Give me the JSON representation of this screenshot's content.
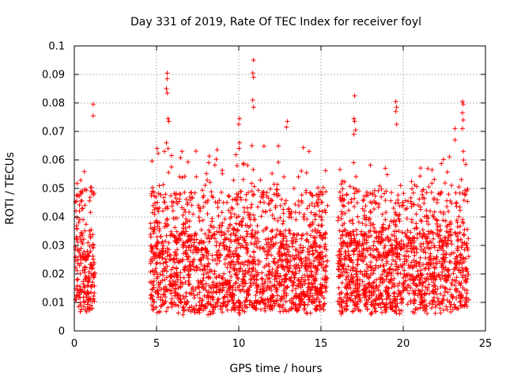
{
  "chart_data": {
    "type": "scatter",
    "title": "Day 331 of 2019, Rate Of TEC Index for receiver foyl",
    "xlabel": "GPS time / hours",
    "ylabel": "ROTI / TECUs",
    "xlim": [
      0,
      25
    ],
    "ylim": [
      0,
      0.1
    ],
    "x_ticks": [
      "0",
      "5",
      "10",
      "15",
      "20",
      "25"
    ],
    "y_ticks": [
      "0",
      "0.01",
      "0.02",
      "0.03",
      "0.04",
      "0.05",
      "0.06",
      "0.07",
      "0.08",
      "0.09",
      "0.1"
    ],
    "grid": true,
    "marker": "+",
    "series_color": "#ff0000",
    "data_segments": [
      {
        "x_start": 0.05,
        "x_end": 1.25,
        "typical_min": 0.007,
        "typical_max": 0.035,
        "peak": 0.055
      },
      {
        "x_start": 4.6,
        "x_end": 15.4,
        "typical_min": 0.007,
        "typical_max": 0.035,
        "peak": 0.065
      },
      {
        "x_start": 16.0,
        "x_end": 24.0,
        "typical_min": 0.007,
        "typical_max": 0.035,
        "peak": 0.06
      }
    ],
    "gaps": [
      [
        1.25,
        4.6
      ],
      [
        15.4,
        16.0
      ]
    ],
    "outliers": [
      {
        "x": 1.15,
        "y": 0.0795
      },
      {
        "x": 1.15,
        "y": 0.0755
      },
      {
        "x": 5.65,
        "y": 0.0905
      },
      {
        "x": 5.65,
        "y": 0.0885
      },
      {
        "x": 5.6,
        "y": 0.085
      },
      {
        "x": 5.65,
        "y": 0.0835
      },
      {
        "x": 5.7,
        "y": 0.0745
      },
      {
        "x": 5.75,
        "y": 0.0735
      },
      {
        "x": 5.6,
        "y": 0.066
      },
      {
        "x": 5.7,
        "y": 0.064
      },
      {
        "x": 6.55,
        "y": 0.063
      },
      {
        "x": 10.05,
        "y": 0.0745
      },
      {
        "x": 10.0,
        "y": 0.0725
      },
      {
        "x": 10.05,
        "y": 0.066
      },
      {
        "x": 10.9,
        "y": 0.095
      },
      {
        "x": 10.85,
        "y": 0.0905
      },
      {
        "x": 10.9,
        "y": 0.089
      },
      {
        "x": 10.85,
        "y": 0.081
      },
      {
        "x": 10.9,
        "y": 0.0785
      },
      {
        "x": 10.8,
        "y": 0.065
      },
      {
        "x": 12.95,
        "y": 0.0735
      },
      {
        "x": 12.9,
        "y": 0.0715
      },
      {
        "x": 17.05,
        "y": 0.0825
      },
      {
        "x": 17.0,
        "y": 0.0745
      },
      {
        "x": 17.05,
        "y": 0.0735
      },
      {
        "x": 17.1,
        "y": 0.0705
      },
      {
        "x": 17.0,
        "y": 0.069
      },
      {
        "x": 19.55,
        "y": 0.0805
      },
      {
        "x": 19.6,
        "y": 0.0785
      },
      {
        "x": 19.55,
        "y": 0.077
      },
      {
        "x": 19.6,
        "y": 0.0725
      },
      {
        "x": 23.15,
        "y": 0.071
      },
      {
        "x": 23.15,
        "y": 0.067
      },
      {
        "x": 23.6,
        "y": 0.0805
      },
      {
        "x": 23.65,
        "y": 0.0795
      },
      {
        "x": 23.6,
        "y": 0.0765
      },
      {
        "x": 23.65,
        "y": 0.074
      },
      {
        "x": 23.6,
        "y": 0.071
      },
      {
        "x": 23.65,
        "y": 0.063
      }
    ]
  }
}
